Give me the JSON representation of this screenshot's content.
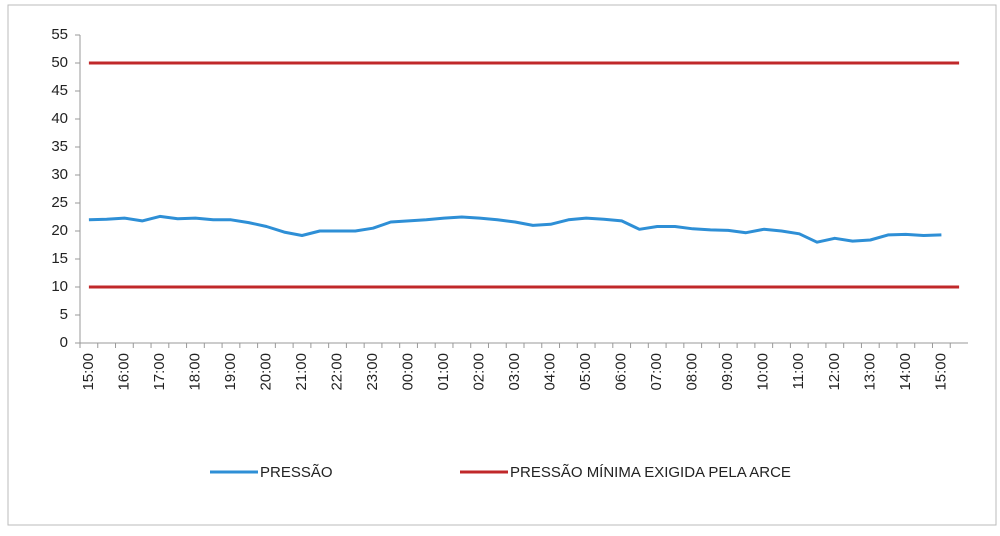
{
  "chart_data": {
    "type": "line",
    "categories": [
      "15:00",
      null,
      "16:00",
      null,
      "17:00",
      null,
      "18:00",
      null,
      "19:00",
      null,
      "20:00",
      null,
      "21:00",
      null,
      "22:00",
      null,
      "23:00",
      null,
      "00:00",
      null,
      "01:00",
      null,
      "02:00",
      null,
      "03:00",
      null,
      "04:00",
      null,
      "05:00",
      null,
      "06:00",
      null,
      "07:00",
      null,
      "08:00",
      null,
      "09:00",
      null,
      "10:00",
      null,
      "11:00",
      null,
      "12:00",
      null,
      "13:00",
      null,
      "14:00",
      null,
      "15:00",
      null
    ],
    "series": [
      {
        "name": "PRESSÃO",
        "color": "#2e8fd6",
        "values": [
          22,
          22.1,
          22.3,
          21.8,
          22.6,
          22.2,
          22.3,
          22,
          22,
          21.5,
          20.8,
          19.8,
          19.2,
          20,
          20,
          20,
          20.5,
          21.6,
          21.8,
          22,
          22.3,
          22.5,
          22.3,
          22,
          21.6,
          21,
          21.2,
          22,
          22.3,
          22.1,
          21.8,
          20.3,
          20.8,
          20.8,
          20.4,
          20.2,
          20.1,
          19.7,
          20.3,
          20,
          19.5,
          18,
          18.7,
          18.2,
          18.4,
          19.3,
          19.4,
          19.2,
          19.3,
          null
        ]
      },
      {
        "name": "PRESSÃO MÍNIMA EXIGIDA PELA ARCE",
        "color": "#c0282a",
        "values": [
          10,
          10,
          10,
          10,
          10,
          10,
          10,
          10,
          10,
          10,
          10,
          10,
          10,
          10,
          10,
          10,
          10,
          10,
          10,
          10,
          10,
          10,
          10,
          10,
          10,
          10,
          10,
          10,
          10,
          10,
          10,
          10,
          10,
          10,
          10,
          10,
          10,
          10,
          10,
          10,
          10,
          10,
          10,
          10,
          10,
          10,
          10,
          10,
          10,
          10
        ]
      },
      {
        "color": "#c0282a",
        "values": [
          50,
          50,
          50,
          50,
          50,
          50,
          50,
          50,
          50,
          50,
          50,
          50,
          50,
          50,
          50,
          50,
          50,
          50,
          50,
          50,
          50,
          50,
          50,
          50,
          50,
          50,
          50,
          50,
          50,
          50,
          50,
          50,
          50,
          50,
          50,
          50,
          50,
          50,
          50,
          50,
          50,
          50,
          50,
          50,
          50,
          50,
          50,
          50,
          50,
          50
        ]
      }
    ],
    "ylim": [
      0,
      55
    ],
    "yticks": [
      0,
      5,
      10,
      15,
      20,
      25,
      30,
      35,
      40,
      45,
      50,
      55
    ],
    "grid": false
  }
}
